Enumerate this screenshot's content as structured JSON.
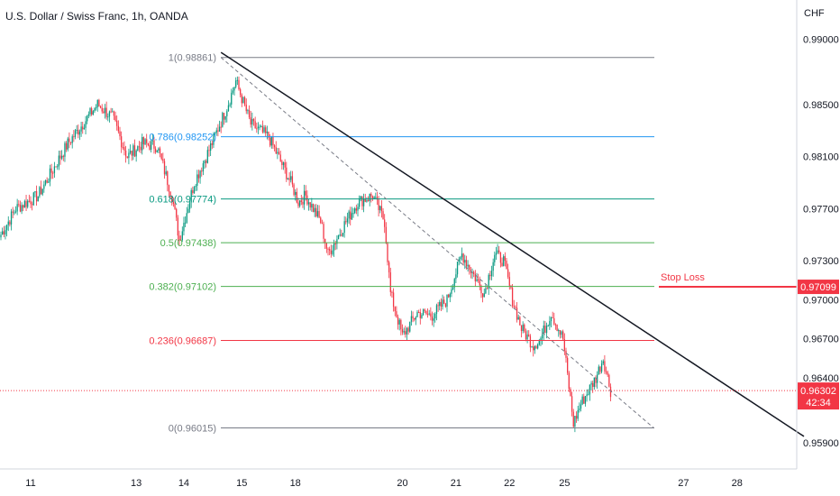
{
  "header": {
    "title": "U.S. Dollar / Swiss Franc, 1h, OANDA",
    "currency": "CHF"
  },
  "chart_data": {
    "type": "candlestick",
    "y_axis": {
      "range": [
        0.957,
        0.9915
      ],
      "ticks": [
        "0.99000",
        "0.98500",
        "0.98100",
        "0.97700",
        "0.97300",
        "0.97000",
        "0.96700",
        "0.96400",
        "0.95900"
      ],
      "tick_values": [
        0.99,
        0.985,
        0.981,
        0.977,
        0.973,
        0.97,
        0.967,
        0.964,
        0.959
      ]
    },
    "x_axis": {
      "ticks": [
        "11",
        "13",
        "14",
        "15",
        "18",
        "20",
        "21",
        "22",
        "25",
        "27",
        "28"
      ],
      "tick_index": [
        20,
        91,
        123,
        162,
        198,
        270,
        306,
        342,
        379,
        459,
        495
      ]
    },
    "anchors": [
      [
        0,
        0.975
      ],
      [
        10,
        0.977
      ],
      [
        25,
        0.978
      ],
      [
        45,
        0.982
      ],
      [
        65,
        0.985
      ],
      [
        75,
        0.984
      ],
      [
        85,
        0.981
      ],
      [
        95,
        0.982
      ],
      [
        105,
        0.9818
      ],
      [
        115,
        0.978
      ],
      [
        120,
        0.9746
      ],
      [
        130,
        0.979
      ],
      [
        140,
        0.9815
      ],
      [
        152,
        0.9848
      ],
      [
        158,
        0.9868
      ],
      [
        168,
        0.9835
      ],
      [
        180,
        0.9825
      ],
      [
        195,
        0.979
      ],
      [
        200,
        0.9775
      ],
      [
        205,
        0.978
      ],
      [
        215,
        0.976
      ],
      [
        220,
        0.9735
      ],
      [
        232,
        0.976
      ],
      [
        240,
        0.9775
      ],
      [
        250,
        0.978
      ],
      [
        258,
        0.976
      ],
      [
        262,
        0.9705
      ],
      [
        270,
        0.9672
      ],
      [
        280,
        0.969
      ],
      [
        290,
        0.9688
      ],
      [
        300,
        0.97
      ],
      [
        310,
        0.9735
      ],
      [
        320,
        0.9715
      ],
      [
        325,
        0.9705
      ],
      [
        332,
        0.9735
      ],
      [
        338,
        0.973
      ],
      [
        344,
        0.97
      ],
      [
        350,
        0.9678
      ],
      [
        358,
        0.9665
      ],
      [
        363,
        0.967
      ],
      [
        370,
        0.969
      ],
      [
        378,
        0.967
      ],
      [
        385,
        0.9605
      ],
      [
        390,
        0.962
      ],
      [
        400,
        0.964
      ],
      [
        405,
        0.9655
      ],
      [
        410,
        0.963
      ]
    ],
    "fib_levels": [
      {
        "ratio": "1",
        "price": 0.98861,
        "label": "1(0.98861)",
        "color": "#787b86"
      },
      {
        "ratio": "0.786",
        "price": 0.98252,
        "label": "0.786(0.98252)",
        "color": "#2196f3"
      },
      {
        "ratio": "0.618",
        "price": 0.97774,
        "label": "0.618(0.97774)",
        "color": "#089981"
      },
      {
        "ratio": "0.5",
        "price": 0.97438,
        "label": "0.5(0.97438)",
        "color": "#4caf50"
      },
      {
        "ratio": "0.382",
        "price": 0.97102,
        "label": "0.382(0.97102)",
        "color": "#4caf50"
      },
      {
        "ratio": "0.236",
        "price": 0.96687,
        "label": "0.236(0.96687)",
        "color": "#f23645"
      },
      {
        "ratio": "0",
        "price": 0.96015,
        "label": "0(0.96015)",
        "color": "#787b86"
      }
    ],
    "trendline": {
      "from": [
        148,
        0.989
      ],
      "to": [
        540,
        0.9595
      ]
    },
    "fib_diagonal": {
      "from": [
        148,
        0.98861
      ],
      "to": [
        439,
        0.96015
      ]
    },
    "stop_loss": {
      "label": "Stop Loss",
      "price": 0.97099,
      "price_label": "0.97099",
      "color": "#f23645"
    },
    "current_price": {
      "price": 0.96302,
      "price_label": "0.96302",
      "countdown": "42:34",
      "color": "#f23645"
    },
    "colors": {
      "up": "#089981",
      "down": "#f23645",
      "trend": "#131722"
    }
  }
}
